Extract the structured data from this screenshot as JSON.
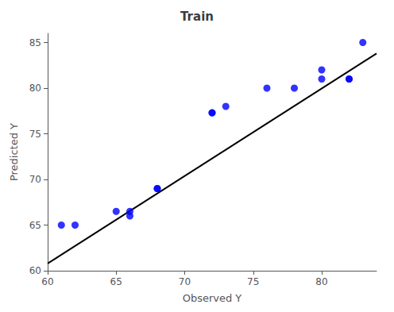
{
  "chart_data": {
    "type": "scatter",
    "title": "Train",
    "xlabel": "Observed Y",
    "ylabel": "Predicted Y",
    "series": [
      {
        "type": "line",
        "color": "#000000",
        "x": [
          60,
          84
        ],
        "values": [
          60.8,
          83.8
        ]
      },
      {
        "type": "scatter",
        "color": "#0000ff",
        "x": [
          61,
          62,
          65,
          66,
          66,
          68,
          68,
          72,
          72,
          73,
          76,
          78,
          80,
          80,
          82,
          82,
          83
        ],
        "values": [
          65,
          65,
          66.5,
          66.5,
          66,
          69,
          69,
          77.3,
          77.3,
          78,
          80,
          80,
          82,
          81,
          81,
          81,
          85
        ]
      }
    ],
    "xlim": [
      60,
      84
    ],
    "ylim": [
      60,
      86
    ],
    "xticks": [
      60,
      65,
      70,
      75,
      80
    ],
    "yticks": [
      60,
      65,
      70,
      75,
      80,
      85
    ],
    "grid": false
  }
}
